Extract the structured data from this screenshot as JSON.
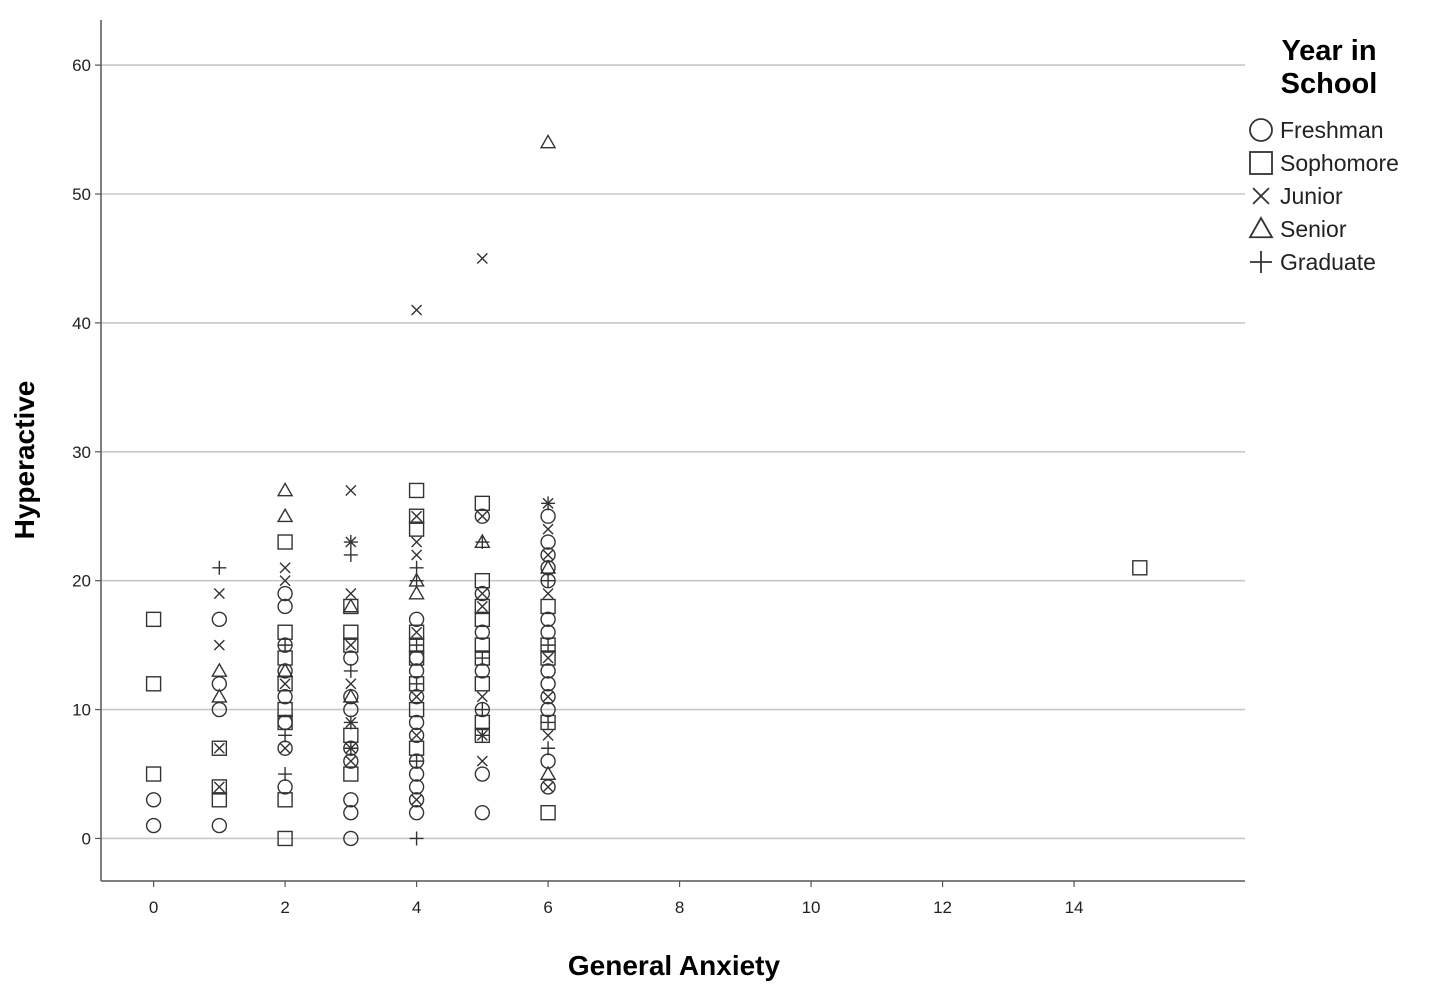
{
  "chart_data": {
    "type": "scatter",
    "title": "",
    "xlabel": "General Anxiety",
    "ylabel": "Hyperactive",
    "xlim": [
      -0.8,
      16.6
    ],
    "ylim": [
      -3.3,
      63.5
    ],
    "xticks": [
      0,
      2,
      4,
      6,
      8,
      10,
      12,
      14
    ],
    "yticks": [
      0,
      10,
      20,
      30,
      40,
      50,
      60
    ],
    "grid": "horizontal",
    "legend": {
      "title_lines": [
        "Year in",
        "School"
      ],
      "placement": "right",
      "entries": [
        {
          "label": "Freshman",
          "marker": "circle"
        },
        {
          "label": "Sophomore",
          "marker": "square"
        },
        {
          "label": "Junior",
          "marker": "x"
        },
        {
          "label": "Senior",
          "marker": "triangle"
        },
        {
          "label": "Graduate",
          "marker": "plus"
        }
      ]
    },
    "series": [
      {
        "name": "Freshman",
        "marker": "circle",
        "points": [
          [
            0,
            1
          ],
          [
            0,
            3
          ],
          [
            1,
            1
          ],
          [
            1,
            10
          ],
          [
            1,
            12
          ],
          [
            1,
            17
          ],
          [
            2,
            4
          ],
          [
            2,
            7
          ],
          [
            2,
            9
          ],
          [
            2,
            11
          ],
          [
            2,
            13
          ],
          [
            2,
            15
          ],
          [
            2,
            18
          ],
          [
            2,
            19
          ],
          [
            3,
            0
          ],
          [
            3,
            2
          ],
          [
            3,
            3
          ],
          [
            3,
            6
          ],
          [
            3,
            7
          ],
          [
            3,
            10
          ],
          [
            3,
            11
          ],
          [
            3,
            14
          ],
          [
            4,
            2
          ],
          [
            4,
            3
          ],
          [
            4,
            4
          ],
          [
            4,
            5
          ],
          [
            4,
            6
          ],
          [
            4,
            8
          ],
          [
            4,
            9
          ],
          [
            4,
            11
          ],
          [
            4,
            13
          ],
          [
            4,
            14
          ],
          [
            4,
            17
          ],
          [
            5,
            2
          ],
          [
            5,
            5
          ],
          [
            5,
            10
          ],
          [
            5,
            13
          ],
          [
            5,
            16
          ],
          [
            5,
            19
          ],
          [
            5,
            25
          ],
          [
            6,
            4
          ],
          [
            6,
            6
          ],
          [
            6,
            10
          ],
          [
            6,
            11
          ],
          [
            6,
            12
          ],
          [
            6,
            13
          ],
          [
            6,
            16
          ],
          [
            6,
            17
          ],
          [
            6,
            20
          ],
          [
            6,
            21
          ],
          [
            6,
            22
          ],
          [
            6,
            23
          ],
          [
            6,
            25
          ]
        ]
      },
      {
        "name": "Sophomore",
        "marker": "square",
        "points": [
          [
            0,
            5
          ],
          [
            0,
            12
          ],
          [
            0,
            17
          ],
          [
            1,
            3
          ],
          [
            1,
            4
          ],
          [
            1,
            7
          ],
          [
            2,
            0
          ],
          [
            2,
            3
          ],
          [
            2,
            9
          ],
          [
            2,
            10
          ],
          [
            2,
            12
          ],
          [
            2,
            14
          ],
          [
            2,
            16
          ],
          [
            2,
            23
          ],
          [
            3,
            5
          ],
          [
            3,
            8
          ],
          [
            3,
            15
          ],
          [
            3,
            16
          ],
          [
            3,
            18
          ],
          [
            4,
            7
          ],
          [
            4,
            10
          ],
          [
            4,
            12
          ],
          [
            4,
            14
          ],
          [
            4,
            15
          ],
          [
            4,
            16
          ],
          [
            4,
            24
          ],
          [
            4,
            25
          ],
          [
            4,
            27
          ],
          [
            5,
            8
          ],
          [
            5,
            9
          ],
          [
            5,
            12
          ],
          [
            5,
            14
          ],
          [
            5,
            15
          ],
          [
            5,
            17
          ],
          [
            5,
            18
          ],
          [
            5,
            20
          ],
          [
            5,
            26
          ],
          [
            6,
            2
          ],
          [
            6,
            9
          ],
          [
            6,
            14
          ],
          [
            6,
            15
          ],
          [
            6,
            18
          ],
          [
            15,
            21
          ]
        ]
      },
      {
        "name": "Junior",
        "marker": "x",
        "points": [
          [
            1,
            4
          ],
          [
            1,
            7
          ],
          [
            1,
            15
          ],
          [
            1,
            19
          ],
          [
            2,
            7
          ],
          [
            2,
            12
          ],
          [
            2,
            20
          ],
          [
            2,
            21
          ],
          [
            3,
            6
          ],
          [
            3,
            7
          ],
          [
            3,
            9
          ],
          [
            3,
            12
          ],
          [
            3,
            15
          ],
          [
            3,
            19
          ],
          [
            3,
            23
          ],
          [
            3,
            27
          ],
          [
            4,
            3
          ],
          [
            4,
            8
          ],
          [
            4,
            11
          ],
          [
            4,
            16
          ],
          [
            4,
            22
          ],
          [
            4,
            23
          ],
          [
            4,
            25
          ],
          [
            4,
            41
          ],
          [
            5,
            6
          ],
          [
            5,
            8
          ],
          [
            5,
            11
          ],
          [
            5,
            18
          ],
          [
            5,
            19
          ],
          [
            5,
            25
          ],
          [
            5,
            45
          ],
          [
            6,
            4
          ],
          [
            6,
            8
          ],
          [
            6,
            11
          ],
          [
            6,
            14
          ],
          [
            6,
            19
          ],
          [
            6,
            22
          ],
          [
            6,
            24
          ],
          [
            6,
            26
          ]
        ]
      },
      {
        "name": "Senior",
        "marker": "triangle",
        "points": [
          [
            1,
            11
          ],
          [
            1,
            13
          ],
          [
            2,
            13
          ],
          [
            2,
            25
          ],
          [
            2,
            27
          ],
          [
            3,
            11
          ],
          [
            3,
            18
          ],
          [
            4,
            19
          ],
          [
            4,
            20
          ],
          [
            5,
            23
          ],
          [
            6,
            5
          ],
          [
            6,
            21
          ],
          [
            6,
            54
          ]
        ]
      },
      {
        "name": "Graduate",
        "marker": "plus",
        "points": [
          [
            1,
            21
          ],
          [
            2,
            5
          ],
          [
            2,
            8
          ],
          [
            2,
            15
          ],
          [
            3,
            7
          ],
          [
            3,
            9
          ],
          [
            3,
            13
          ],
          [
            3,
            22
          ],
          [
            3,
            23
          ],
          [
            4,
            0
          ],
          [
            4,
            6
          ],
          [
            4,
            12
          ],
          [
            4,
            15
          ],
          [
            4,
            20
          ],
          [
            4,
            21
          ],
          [
            5,
            8
          ],
          [
            5,
            10
          ],
          [
            5,
            14
          ],
          [
            5,
            23
          ],
          [
            6,
            7
          ],
          [
            6,
            9
          ],
          [
            6,
            15
          ],
          [
            6,
            20
          ],
          [
            6,
            26
          ]
        ]
      }
    ]
  },
  "colors": {
    "marker": "#333333",
    "grid": "#c8c8c8",
    "axis": "#555555"
  }
}
